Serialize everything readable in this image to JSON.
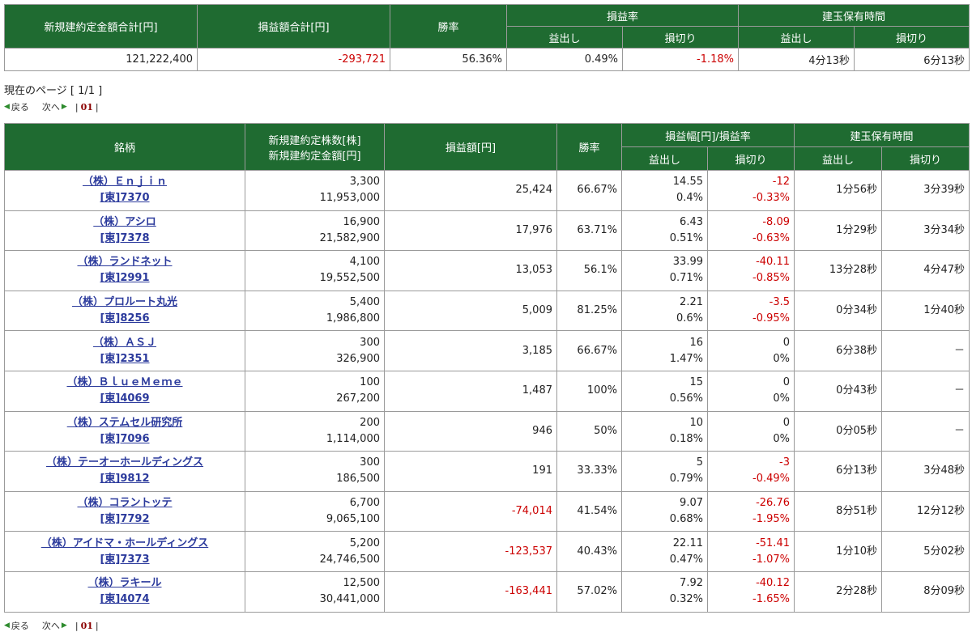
{
  "summary": {
    "headers": {
      "new_amount_total": "新規建約定金額合計[円]",
      "pnl_total": "損益額合計[円]",
      "win_rate": "勝率",
      "pnl_rate": "損益率",
      "holding_time": "建玉保有時間",
      "profit": "益出し",
      "loss": "損切り"
    },
    "values": {
      "new_amount_total": "121,222,400",
      "pnl_total": "-293,721",
      "win_rate": "56.36%",
      "pnl_rate_profit": "0.49%",
      "pnl_rate_loss": "-1.18%",
      "holding_profit": "4分13秒",
      "holding_loss": "6分13秒"
    }
  },
  "page_info": "現在のページ [ 1/1 ]",
  "pager": {
    "prev": "戻る",
    "next": "次へ",
    "page": "01",
    "sep": "|"
  },
  "detail": {
    "headers": {
      "stock": "銘柄",
      "shares": "新規建約定株数[株]",
      "amount": "新規建約定金額[円]",
      "pnl": "損益額[円]",
      "win_rate": "勝率",
      "range": "損益幅[円]/損益率",
      "holding": "建玉保有時間",
      "profit": "益出し",
      "loss": "損切り"
    },
    "rows": [
      {
        "name": "（株）Ｅｎｊｉｎ",
        "code": "[東]7370",
        "shares": "3,300",
        "amount": "11,953,000",
        "pnl": "25,424",
        "win": "66.67%",
        "profit_yen": "14.55",
        "profit_pct": "0.4%",
        "loss_yen": "-12",
        "loss_pct": "-0.33%",
        "hold_profit": "1分56秒",
        "hold_loss": "3分39秒"
      },
      {
        "name": "（株）アシロ",
        "code": "[東]7378",
        "shares": "16,900",
        "amount": "21,582,900",
        "pnl": "17,976",
        "win": "63.71%",
        "profit_yen": "6.43",
        "profit_pct": "0.51%",
        "loss_yen": "-8.09",
        "loss_pct": "-0.63%",
        "hold_profit": "1分29秒",
        "hold_loss": "3分34秒"
      },
      {
        "name": "（株）ランドネット",
        "code": "[東]2991",
        "shares": "4,100",
        "amount": "19,552,500",
        "pnl": "13,053",
        "win": "56.1%",
        "profit_yen": "33.99",
        "profit_pct": "0.71%",
        "loss_yen": "-40.11",
        "loss_pct": "-0.85%",
        "hold_profit": "13分28秒",
        "hold_loss": "4分47秒"
      },
      {
        "name": "（株）プロルート丸光",
        "code": "[東]8256",
        "shares": "5,400",
        "amount": "1,986,800",
        "pnl": "5,009",
        "win": "81.25%",
        "profit_yen": "2.21",
        "profit_pct": "0.6%",
        "loss_yen": "-3.5",
        "loss_pct": "-0.95%",
        "hold_profit": "0分34秒",
        "hold_loss": "1分40秒"
      },
      {
        "name": "（株）ＡＳＪ",
        "code": "[東]2351",
        "shares": "300",
        "amount": "326,900",
        "pnl": "3,185",
        "win": "66.67%",
        "profit_yen": "16",
        "profit_pct": "1.47%",
        "loss_yen": "0",
        "loss_pct": "0%",
        "hold_profit": "6分38秒",
        "hold_loss": "－"
      },
      {
        "name": "（株）ＢｌｕｅＭｅｍｅ",
        "code": "[東]4069",
        "shares": "100",
        "amount": "267,200",
        "pnl": "1,487",
        "win": "100%",
        "profit_yen": "15",
        "profit_pct": "0.56%",
        "loss_yen": "0",
        "loss_pct": "0%",
        "hold_profit": "0分43秒",
        "hold_loss": "－"
      },
      {
        "name": "（株）ステムセル研究所",
        "code": "[東]7096",
        "shares": "200",
        "amount": "1,114,000",
        "pnl": "946",
        "win": "50%",
        "profit_yen": "10",
        "profit_pct": "0.18%",
        "loss_yen": "0",
        "loss_pct": "0%",
        "hold_profit": "0分05秒",
        "hold_loss": "－"
      },
      {
        "name": "（株）テーオーホールディングス",
        "code": "[東]9812",
        "shares": "300",
        "amount": "186,500",
        "pnl": "191",
        "win": "33.33%",
        "profit_yen": "5",
        "profit_pct": "0.79%",
        "loss_yen": "-3",
        "loss_pct": "-0.49%",
        "hold_profit": "6分13秒",
        "hold_loss": "3分48秒"
      },
      {
        "name": "（株）コラントッテ",
        "code": "[東]7792",
        "shares": "6,700",
        "amount": "9,065,100",
        "pnl": "-74,014",
        "win": "41.54%",
        "profit_yen": "9.07",
        "profit_pct": "0.68%",
        "loss_yen": "-26.76",
        "loss_pct": "-1.95%",
        "hold_profit": "8分51秒",
        "hold_loss": "12分12秒"
      },
      {
        "name": "（株）アイドマ・ホールディングス",
        "code": "[東]7373",
        "shares": "5,200",
        "amount": "24,746,500",
        "pnl": "-123,537",
        "win": "40.43%",
        "profit_yen": "22.11",
        "profit_pct": "0.47%",
        "loss_yen": "-51.41",
        "loss_pct": "-1.07%",
        "hold_profit": "1分10秒",
        "hold_loss": "5分02秒"
      },
      {
        "name": "（株）ラキール",
        "code": "[東]4074",
        "shares": "12,500",
        "amount": "30,441,000",
        "pnl": "-163,441",
        "win": "57.02%",
        "profit_yen": "7.92",
        "profit_pct": "0.32%",
        "loss_yen": "-40.12",
        "loss_pct": "-1.65%",
        "hold_profit": "2分28秒",
        "hold_loss": "8分09秒"
      }
    ]
  },
  "colors": {
    "header_bg": "#1f6b31",
    "negative": "#cc0000",
    "link": "#2b3a9c",
    "page_num": "#8b0000",
    "pager_arrow": "#2e8b2e"
  },
  "icons": {
    "prev": "triangle-left-icon",
    "next": "triangle-right-icon"
  }
}
